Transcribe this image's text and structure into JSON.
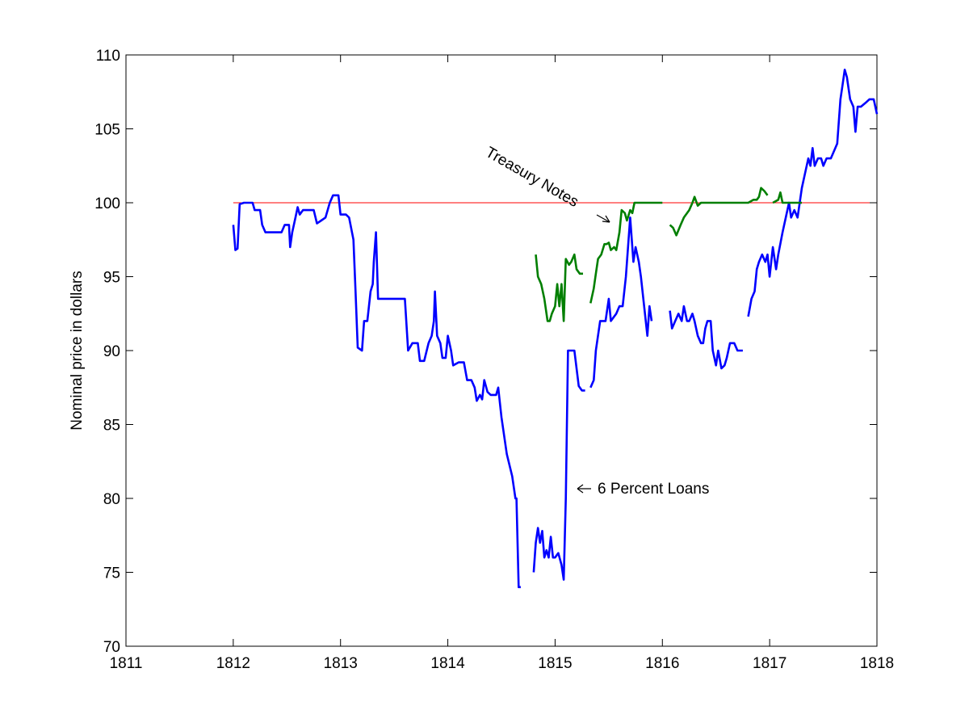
{
  "chart_data": {
    "type": "line",
    "title": "",
    "xlabel": "",
    "ylabel": "Nominal price in dollars",
    "xlim": [
      1811,
      1818
    ],
    "ylim": [
      70,
      110
    ],
    "xticks": [
      "1811",
      "1812",
      "1813",
      "1814",
      "1815",
      "1816",
      "1817",
      "1818"
    ],
    "yticks": [
      "70",
      "75",
      "80",
      "85",
      "90",
      "95",
      "100",
      "105",
      "110"
    ],
    "grid": false,
    "legend": "none",
    "colors": {
      "loans": "#0000ff",
      "notes": "#007f00",
      "par": "#ff0000"
    },
    "reference_line": {
      "y": 100,
      "x": [
        1812,
        1818
      ]
    },
    "annotations": [
      {
        "text": "Treasury Notes",
        "points_to": [
          1815.7,
          98.8
        ]
      },
      {
        "text": "6 Percent Loans",
        "points_to": [
          1815.2,
          80.8
        ]
      }
    ],
    "series": [
      {
        "segments": [
          [
            [
              1812.0,
              98.5
            ],
            [
              1812.02,
              96.8
            ],
            [
              1812.04,
              96.9
            ],
            [
              1812.06,
              99.9
            ],
            [
              1812.1,
              100.0
            ],
            [
              1812.18,
              100.0
            ],
            [
              1812.2,
              99.5
            ],
            [
              1812.25,
              99.5
            ],
            [
              1812.27,
              98.5
            ],
            [
              1812.3,
              98.0
            ],
            [
              1812.4,
              98.0
            ],
            [
              1812.45,
              98.0
            ],
            [
              1812.48,
              98.5
            ],
            [
              1812.52,
              98.5
            ],
            [
              1812.53,
              97.0
            ],
            [
              1812.55,
              98.0
            ],
            [
              1812.58,
              99.0
            ],
            [
              1812.6,
              99.7
            ],
            [
              1812.62,
              99.2
            ],
            [
              1812.65,
              99.5
            ],
            [
              1812.72,
              99.5
            ],
            [
              1812.75,
              99.5
            ],
            [
              1812.78,
              98.6
            ],
            [
              1812.82,
              98.8
            ],
            [
              1812.86,
              99.0
            ],
            [
              1812.9,
              100.0
            ],
            [
              1812.93,
              100.5
            ],
            [
              1812.98,
              100.5
            ],
            [
              1813.0,
              99.2
            ],
            [
              1813.05,
              99.2
            ],
            [
              1813.08,
              99.0
            ],
            [
              1813.12,
              97.5
            ],
            [
              1813.14,
              94.0
            ],
            [
              1813.16,
              90.2
            ],
            [
              1813.2,
              90.0
            ],
            [
              1813.22,
              92.0
            ],
            [
              1813.25,
              92.0
            ],
            [
              1813.28,
              94.0
            ],
            [
              1813.3,
              94.5
            ],
            [
              1813.31,
              96.0
            ],
            [
              1813.33,
              98.0
            ],
            [
              1813.35,
              93.5
            ],
            [
              1813.45,
              93.5
            ],
            [
              1813.5,
              93.5
            ],
            [
              1813.6,
              93.5
            ],
            [
              1813.63,
              90.0
            ],
            [
              1813.67,
              90.5
            ],
            [
              1813.72,
              90.5
            ],
            [
              1813.74,
              89.3
            ],
            [
              1813.78,
              89.3
            ],
            [
              1813.82,
              90.5
            ],
            [
              1813.85,
              91.0
            ],
            [
              1813.87,
              92.0
            ],
            [
              1813.88,
              94.0
            ],
            [
              1813.9,
              91.0
            ],
            [
              1813.93,
              90.5
            ],
            [
              1813.95,
              89.5
            ],
            [
              1813.98,
              89.5
            ],
            [
              1814.0,
              91.0
            ],
            [
              1814.03,
              90.0
            ],
            [
              1814.05,
              89.0
            ],
            [
              1814.1,
              89.2
            ],
            [
              1814.15,
              89.2
            ],
            [
              1814.18,
              88.0
            ],
            [
              1814.22,
              88.0
            ],
            [
              1814.25,
              87.5
            ],
            [
              1814.27,
              86.6
            ],
            [
              1814.3,
              87.0
            ],
            [
              1814.32,
              86.7
            ],
            [
              1814.34,
              88.0
            ],
            [
              1814.37,
              87.2
            ],
            [
              1814.4,
              87.0
            ],
            [
              1814.45,
              87.0
            ],
            [
              1814.47,
              87.5
            ],
            [
              1814.5,
              85.5
            ],
            [
              1814.55,
              83.0
            ],
            [
              1814.6,
              81.5
            ],
            [
              1814.63,
              80.0
            ],
            [
              1814.64,
              80.0
            ],
            [
              1814.66,
              74.0
            ],
            [
              1814.68,
              74.0
            ]
          ],
          [
            [
              1814.8,
              75.0
            ],
            [
              1814.82,
              77.0
            ],
            [
              1814.84,
              78.0
            ],
            [
              1814.86,
              77.0
            ],
            [
              1814.88,
              77.8
            ],
            [
              1814.9,
              76.0
            ],
            [
              1814.92,
              76.5
            ],
            [
              1814.94,
              76.0
            ],
            [
              1814.96,
              77.4
            ],
            [
              1814.98,
              76.0
            ],
            [
              1815.0,
              76.0
            ],
            [
              1815.03,
              76.3
            ],
            [
              1815.06,
              75.5
            ],
            [
              1815.08,
              74.5
            ],
            [
              1815.1,
              80.0
            ],
            [
              1815.12,
              90.0
            ],
            [
              1815.18,
              90.0
            ],
            [
              1815.22,
              87.6
            ],
            [
              1815.25,
              87.3
            ],
            [
              1815.28,
              87.3
            ]
          ],
          [
            [
              1815.33,
              87.5
            ],
            [
              1815.36,
              88.0
            ],
            [
              1815.38,
              90.0
            ],
            [
              1815.42,
              92.0
            ],
            [
              1815.47,
              92.0
            ],
            [
              1815.5,
              93.5
            ],
            [
              1815.52,
              92.0
            ],
            [
              1815.57,
              92.5
            ],
            [
              1815.6,
              93.0
            ],
            [
              1815.63,
              93.0
            ],
            [
              1815.66,
              95.0
            ],
            [
              1815.7,
              99.0
            ],
            [
              1815.73,
              96.0
            ],
            [
              1815.75,
              97.0
            ],
            [
              1815.78,
              96.0
            ],
            [
              1815.8,
              95.0
            ],
            [
              1815.83,
              93.0
            ],
            [
              1815.86,
              91.0
            ],
            [
              1815.88,
              93.0
            ],
            [
              1815.9,
              92.0
            ]
          ],
          [
            [
              1816.07,
              92.7
            ],
            [
              1816.09,
              91.5
            ],
            [
              1816.12,
              92.0
            ],
            [
              1816.15,
              92.5
            ],
            [
              1816.18,
              92.0
            ],
            [
              1816.2,
              93.0
            ],
            [
              1816.23,
              92.0
            ],
            [
              1816.25,
              92.0
            ],
            [
              1816.28,
              92.5
            ],
            [
              1816.3,
              92.0
            ],
            [
              1816.33,
              91.0
            ],
            [
              1816.36,
              90.5
            ],
            [
              1816.38,
              90.5
            ],
            [
              1816.4,
              91.5
            ],
            [
              1816.42,
              92.0
            ],
            [
              1816.45,
              92.0
            ],
            [
              1816.47,
              90.0
            ],
            [
              1816.5,
              89.0
            ],
            [
              1816.52,
              90.0
            ],
            [
              1816.55,
              88.8
            ],
            [
              1816.58,
              89.0
            ],
            [
              1816.6,
              89.5
            ],
            [
              1816.63,
              90.5
            ],
            [
              1816.67,
              90.5
            ],
            [
              1816.7,
              90.0
            ],
            [
              1816.75,
              90.0
            ]
          ],
          [
            [
              1816.8,
              92.3
            ],
            [
              1816.83,
              93.5
            ],
            [
              1816.86,
              94.0
            ],
            [
              1816.88,
              95.5
            ],
            [
              1816.9,
              96.0
            ],
            [
              1816.93,
              96.5
            ],
            [
              1816.96,
              96.0
            ],
            [
              1816.98,
              96.5
            ],
            [
              1817.0,
              95.0
            ],
            [
              1817.03,
              97.0
            ],
            [
              1817.06,
              95.5
            ],
            [
              1817.08,
              96.5
            ],
            [
              1817.12,
              98.0
            ],
            [
              1817.15,
              99.0
            ],
            [
              1817.18,
              100.0
            ],
            [
              1817.2,
              99.0
            ],
            [
              1817.23,
              99.5
            ],
            [
              1817.26,
              99.0
            ],
            [
              1817.3,
              101.0
            ],
            [
              1817.33,
              102.0
            ],
            [
              1817.36,
              103.0
            ],
            [
              1817.38,
              102.5
            ],
            [
              1817.4,
              103.7
            ],
            [
              1817.42,
              102.5
            ],
            [
              1817.45,
              103.0
            ],
            [
              1817.48,
              103.0
            ],
            [
              1817.5,
              102.5
            ],
            [
              1817.53,
              103.0
            ],
            [
              1817.57,
              103.0
            ],
            [
              1817.6,
              103.5
            ],
            [
              1817.63,
              104.0
            ],
            [
              1817.66,
              107.0
            ],
            [
              1817.68,
              108.0
            ],
            [
              1817.7,
              109.0
            ],
            [
              1817.72,
              108.5
            ],
            [
              1817.75,
              107.0
            ],
            [
              1817.78,
              106.5
            ],
            [
              1817.8,
              104.8
            ],
            [
              1817.82,
              106.5
            ],
            [
              1817.85,
              106.5
            ],
            [
              1817.9,
              106.8
            ],
            [
              1817.93,
              107.0
            ],
            [
              1817.97,
              107.0
            ],
            [
              1818.0,
              106.0
            ]
          ]
        ]
      },
      {
        "segments": [
          [
            [
              1814.82,
              96.5
            ],
            [
              1814.84,
              95.0
            ],
            [
              1814.87,
              94.5
            ],
            [
              1814.9,
              93.5
            ],
            [
              1814.93,
              92.0
            ],
            [
              1814.95,
              92.0
            ],
            [
              1814.97,
              92.5
            ],
            [
              1815.0,
              93.0
            ],
            [
              1815.02,
              94.5
            ],
            [
              1815.04,
              93.0
            ],
            [
              1815.06,
              94.5
            ],
            [
              1815.08,
              92.0
            ],
            [
              1815.1,
              96.2
            ],
            [
              1815.13,
              95.8
            ],
            [
              1815.15,
              96.0
            ],
            [
              1815.18,
              96.5
            ],
            [
              1815.2,
              95.5
            ],
            [
              1815.23,
              95.2
            ],
            [
              1815.26,
              95.2
            ]
          ],
          [
            [
              1815.33,
              93.2
            ],
            [
              1815.36,
              94.2
            ],
            [
              1815.38,
              95.2
            ],
            [
              1815.4,
              96.2
            ],
            [
              1815.43,
              96.5
            ],
            [
              1815.46,
              97.2
            ],
            [
              1815.48,
              97.2
            ],
            [
              1815.5,
              97.3
            ],
            [
              1815.52,
              96.8
            ],
            [
              1815.55,
              97.0
            ],
            [
              1815.57,
              96.8
            ],
            [
              1815.6,
              98.0
            ],
            [
              1815.62,
              99.5
            ],
            [
              1815.65,
              99.3
            ],
            [
              1815.67,
              98.8
            ],
            [
              1815.7,
              99.5
            ],
            [
              1815.72,
              99.3
            ],
            [
              1815.74,
              100.0
            ],
            [
              1815.8,
              100.0
            ],
            [
              1815.9,
              100.0
            ],
            [
              1816.0,
              100.0
            ]
          ],
          [
            [
              1816.07,
              98.5
            ],
            [
              1816.1,
              98.3
            ],
            [
              1816.13,
              97.8
            ],
            [
              1816.17,
              98.5
            ],
            [
              1816.2,
              99.0
            ],
            [
              1816.25,
              99.5
            ],
            [
              1816.28,
              100.0
            ],
            [
              1816.3,
              100.4
            ],
            [
              1816.33,
              99.8
            ],
            [
              1816.36,
              100.0
            ],
            [
              1816.45,
              100.0
            ],
            [
              1816.55,
              100.0
            ],
            [
              1816.6,
              100.0
            ],
            [
              1816.7,
              100.0
            ],
            [
              1816.75,
              100.0
            ],
            [
              1816.8,
              100.0
            ],
            [
              1816.85,
              100.2
            ],
            [
              1816.88,
              100.2
            ],
            [
              1816.9,
              100.4
            ],
            [
              1816.92,
              101.0
            ],
            [
              1816.95,
              100.8
            ],
            [
              1816.98,
              100.5
            ]
          ],
          [
            [
              1817.03,
              100.0
            ],
            [
              1817.08,
              100.2
            ],
            [
              1817.1,
              100.7
            ],
            [
              1817.12,
              100.0
            ],
            [
              1817.15,
              100.0
            ],
            [
              1817.2,
              100.0
            ],
            [
              1817.25,
              100.0
            ],
            [
              1817.3,
              100.0
            ]
          ]
        ]
      }
    ]
  }
}
